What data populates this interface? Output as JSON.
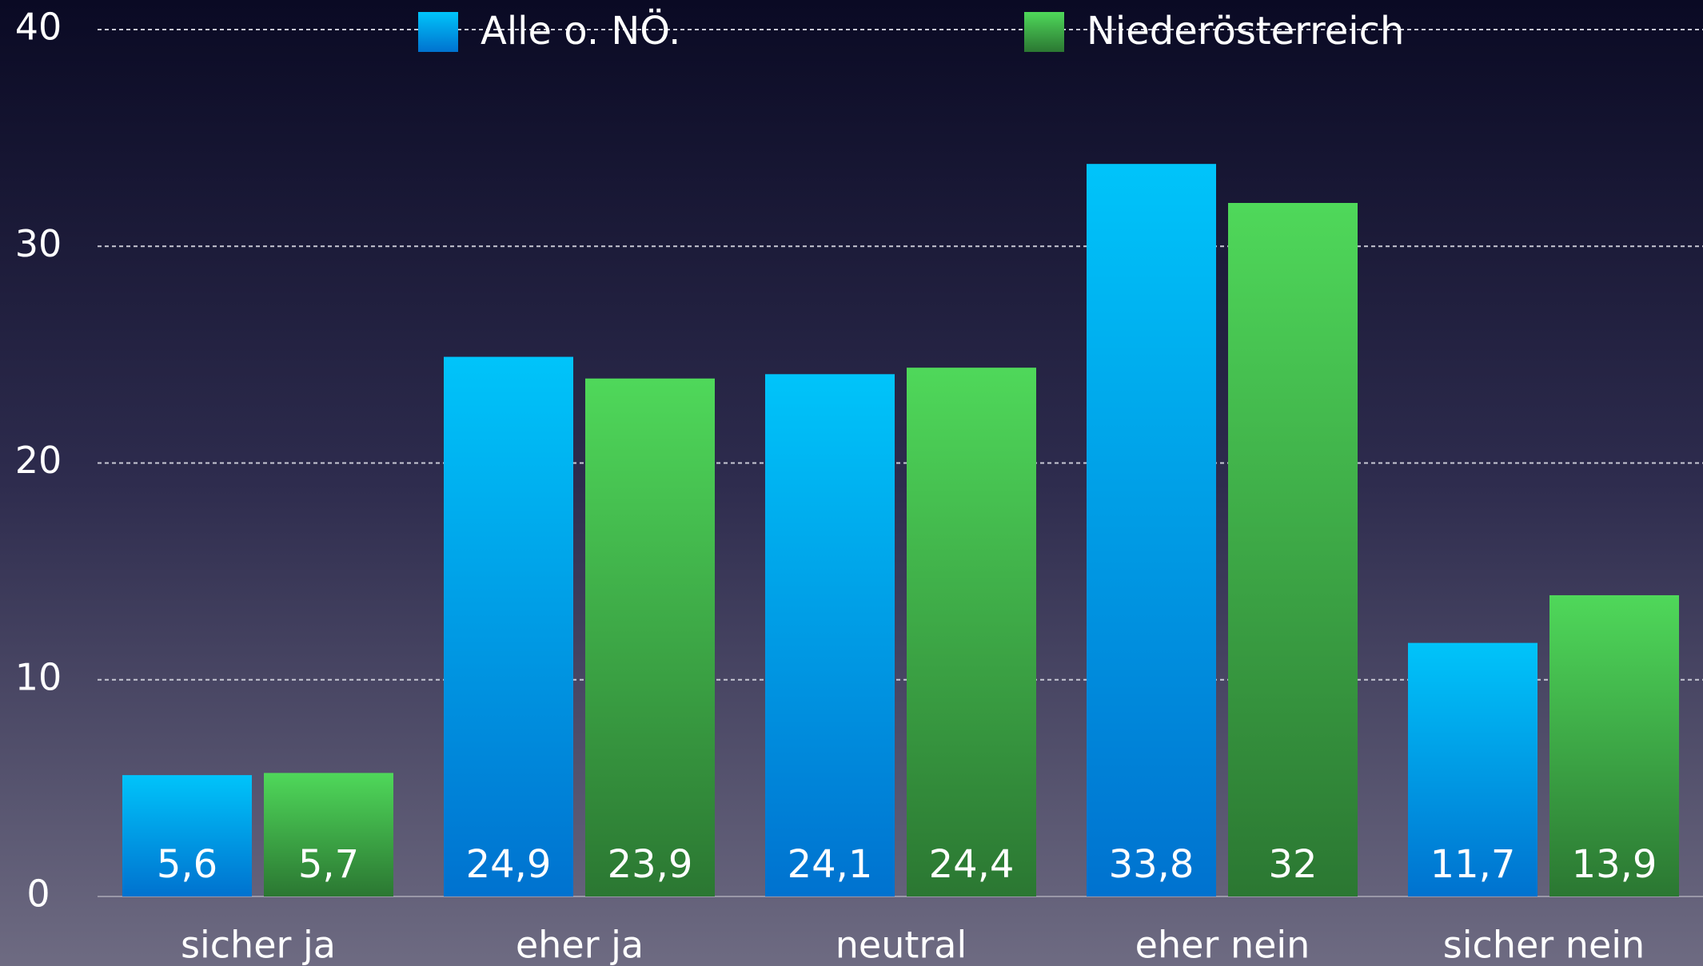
{
  "chart_data": {
    "type": "bar",
    "categories": [
      "sicher ja",
      "eher ja",
      "neutral",
      "eher nein",
      "sicher nein"
    ],
    "series": [
      {
        "name": "Alle o. NÖ.",
        "color": "#00c4fa",
        "values": [
          5.6,
          24.9,
          24.1,
          33.8,
          11.7
        ],
        "value_labels": [
          "5,6",
          "24,9",
          "24,1",
          "33,8",
          "11,7"
        ]
      },
      {
        "name": "Niederösterreich",
        "color": "#4fd85a",
        "values": [
          5.7,
          23.9,
          24.4,
          32,
          13.9
        ],
        "value_labels": [
          "5,7",
          "23,9",
          "24,4",
          "32",
          "13,9"
        ]
      }
    ],
    "ylim": [
      0,
      40
    ],
    "yticks": [
      0,
      10,
      20,
      30,
      40
    ],
    "grid": true,
    "legend": "top"
  }
}
